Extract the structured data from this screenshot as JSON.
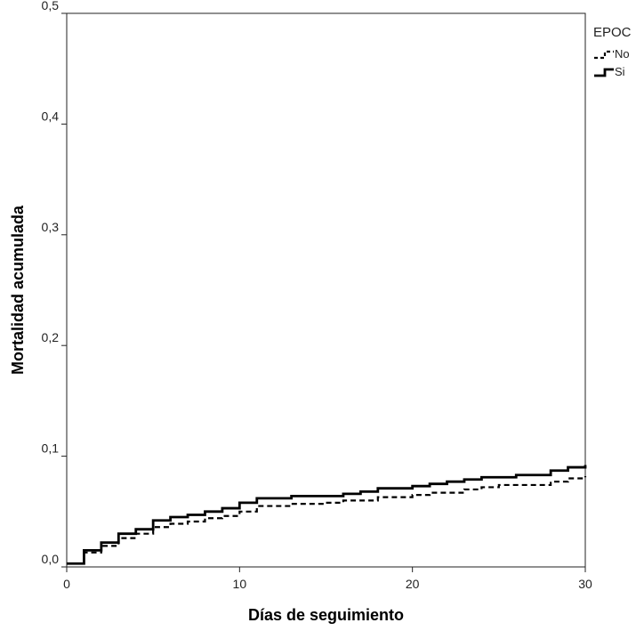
{
  "chart_data": {
    "type": "line",
    "step": true,
    "title": "",
    "xlabel": "Días de seguimiento",
    "ylabel": "Mortalidad acumulada",
    "xlim": [
      0,
      30
    ],
    "ylim": [
      0,
      0.5
    ],
    "xticks": [
      0,
      10,
      20,
      30
    ],
    "yticks": [
      0,
      0.1,
      0.2,
      0.3,
      0.4,
      0.5
    ],
    "xtick_labels": [
      "0",
      "10",
      "20",
      "30"
    ],
    "ytick_labels": [
      "0,0",
      "0,1",
      "0,2",
      "0,3",
      "0,4",
      "0,5"
    ],
    "grid": false,
    "legend": {
      "title": "EPOC",
      "position": "right-top"
    },
    "series": [
      {
        "name": "No",
        "style": "dashed",
        "color": "#000000",
        "points": [
          [
            0,
            0.003
          ],
          [
            1,
            0.013
          ],
          [
            2,
            0.019
          ],
          [
            3,
            0.026
          ],
          [
            4,
            0.03
          ],
          [
            5,
            0.036
          ],
          [
            6,
            0.039
          ],
          [
            7,
            0.041
          ],
          [
            8,
            0.044
          ],
          [
            9,
            0.046
          ],
          [
            10,
            0.05
          ],
          [
            11,
            0.055
          ],
          [
            13,
            0.057
          ],
          [
            15,
            0.058
          ],
          [
            16,
            0.06
          ],
          [
            18,
            0.063
          ],
          [
            20,
            0.065
          ],
          [
            21,
            0.067
          ],
          [
            23,
            0.07
          ],
          [
            24,
            0.072
          ],
          [
            25,
            0.074
          ],
          [
            28,
            0.077
          ],
          [
            29,
            0.08
          ],
          [
            30,
            0.082
          ]
        ]
      },
      {
        "name": "Si",
        "style": "solid",
        "color": "#000000",
        "points": [
          [
            0,
            0.003
          ],
          [
            1,
            0.015
          ],
          [
            2,
            0.022
          ],
          [
            3,
            0.03
          ],
          [
            4,
            0.034
          ],
          [
            5,
            0.042
          ],
          [
            6,
            0.045
          ],
          [
            7,
            0.047
          ],
          [
            8,
            0.05
          ],
          [
            9,
            0.053
          ],
          [
            10,
            0.058
          ],
          [
            11,
            0.062
          ],
          [
            13,
            0.064
          ],
          [
            16,
            0.066
          ],
          [
            17,
            0.068
          ],
          [
            18,
            0.071
          ],
          [
            20,
            0.073
          ],
          [
            21,
            0.075
          ],
          [
            22,
            0.077
          ],
          [
            23,
            0.079
          ],
          [
            24,
            0.081
          ],
          [
            26,
            0.083
          ],
          [
            28,
            0.087
          ],
          [
            29,
            0.09
          ],
          [
            30,
            0.092
          ]
        ]
      }
    ]
  }
}
